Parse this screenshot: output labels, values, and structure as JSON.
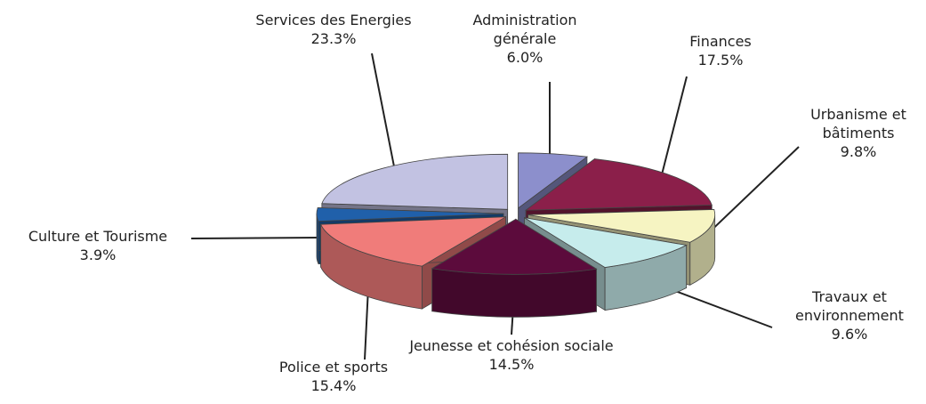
{
  "chart_data": {
    "type": "pie",
    "categories": [
      "Administration générale",
      "Finances",
      "Urbanisme et bâtiments",
      "Travaux et environnement",
      "Jeunesse et cohésion sociale",
      "Police et sports",
      "Culture et Tourisme",
      "Services des Energies"
    ],
    "values": [
      6.0,
      17.5,
      9.8,
      9.6,
      14.5,
      15.4,
      3.9,
      23.3
    ],
    "value_labels": [
      "6.0%",
      "17.5%",
      "9.8%",
      "9.6%",
      "14.5%",
      "15.4%",
      "3.9%",
      "23.3%"
    ],
    "colors": [
      "#8c8fcc",
      "#8b1f4a",
      "#f6f4c2",
      "#c6ecec",
      "#5c0b3c",
      "#f07c7a",
      "#2060aa",
      "#c2c2e2"
    ]
  }
}
